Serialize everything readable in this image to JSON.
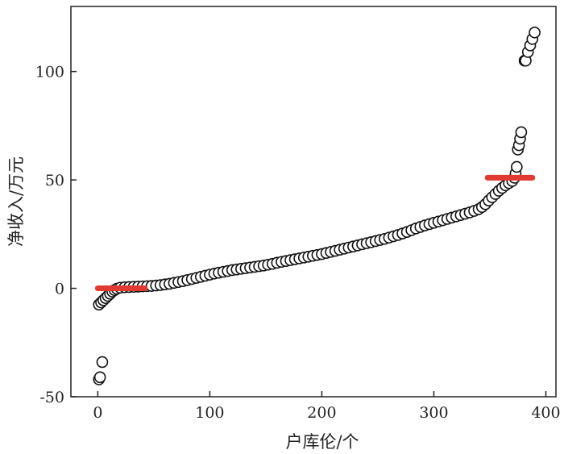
{
  "chart_data": {
    "type": "scatter",
    "title": "",
    "xlabel": "户库伦/个",
    "ylabel": "净收入/万元",
    "xlim": [
      -24,
      409
    ],
    "ylim": [
      -50,
      130
    ],
    "xticks": [
      0,
      100,
      200,
      300,
      400
    ],
    "yticks": [
      -50,
      0,
      50,
      100
    ],
    "grid": false,
    "marker_color": "#111111",
    "line_color": "#e03a32",
    "series": [
      {
        "name": "points",
        "x": [
          1,
          2,
          4,
          1,
          3,
          5,
          7,
          9,
          11,
          13,
          15,
          17,
          20,
          24,
          28,
          32,
          36,
          40,
          44,
          48,
          52,
          56,
          60,
          64,
          68,
          72,
          76,
          80,
          84,
          88,
          92,
          96,
          100,
          104,
          108,
          112,
          116,
          120,
          124,
          128,
          132,
          136,
          140,
          144,
          148,
          152,
          156,
          160,
          164,
          168,
          172,
          176,
          180,
          184,
          188,
          192,
          196,
          200,
          204,
          208,
          212,
          216,
          220,
          224,
          228,
          232,
          236,
          240,
          244,
          248,
          252,
          256,
          260,
          264,
          268,
          272,
          276,
          280,
          284,
          288,
          292,
          296,
          300,
          304,
          308,
          312,
          316,
          320,
          324,
          328,
          332,
          336,
          340,
          343,
          346,
          349,
          352,
          355,
          358,
          361,
          364,
          367,
          370,
          372,
          373,
          374,
          375,
          376,
          377,
          378,
          381,
          382,
          384,
          386,
          388,
          390
        ],
        "y": [
          -42,
          -41,
          -34,
          -7.5,
          -6.5,
          -5.5,
          -4.5,
          -3.5,
          -2.5,
          -1.5,
          -0.8,
          -0.2,
          0.3,
          0.5,
          0.6,
          0.7,
          0.8,
          0.9,
          1,
          1.1,
          1.3,
          1.5,
          1.8,
          2.1,
          2.5,
          2.9,
          3.3,
          3.8,
          4.3,
          4.8,
          5.3,
          5.8,
          6.3,
          6.8,
          7.2,
          7.6,
          8,
          8.4,
          8.7,
          9,
          9.3,
          9.6,
          9.9,
          10.2,
          10.5,
          10.9,
          11.3,
          11.8,
          12.2,
          12.6,
          13,
          13.4,
          13.8,
          14.2,
          14.6,
          15,
          15.4,
          15.8,
          16.3,
          16.8,
          17.3,
          17.8,
          18.3,
          18.8,
          19.3,
          19.8,
          20.3,
          20.8,
          21.3,
          21.8,
          22.3,
          22.8,
          23.4,
          24,
          24.6,
          25.3,
          26,
          26.8,
          27.6,
          28.3,
          29,
          29.6,
          30.2,
          30.8,
          31.4,
          32,
          32.6,
          33.2,
          33.8,
          34.4,
          35,
          35.7,
          36.5,
          37.5,
          38.8,
          40.5,
          42,
          43.5,
          45,
          46.3,
          47.5,
          48.5,
          49.5,
          51,
          53,
          56,
          64,
          66,
          69,
          72,
          105,
          105,
          109,
          112,
          115,
          118
        ]
      }
    ],
    "segments": [
      {
        "name": "low-mean",
        "x": [
          0,
          42
        ],
        "y": 0
      },
      {
        "name": "high-mean",
        "x": [
          348,
          388
        ],
        "y": 51
      }
    ]
  }
}
